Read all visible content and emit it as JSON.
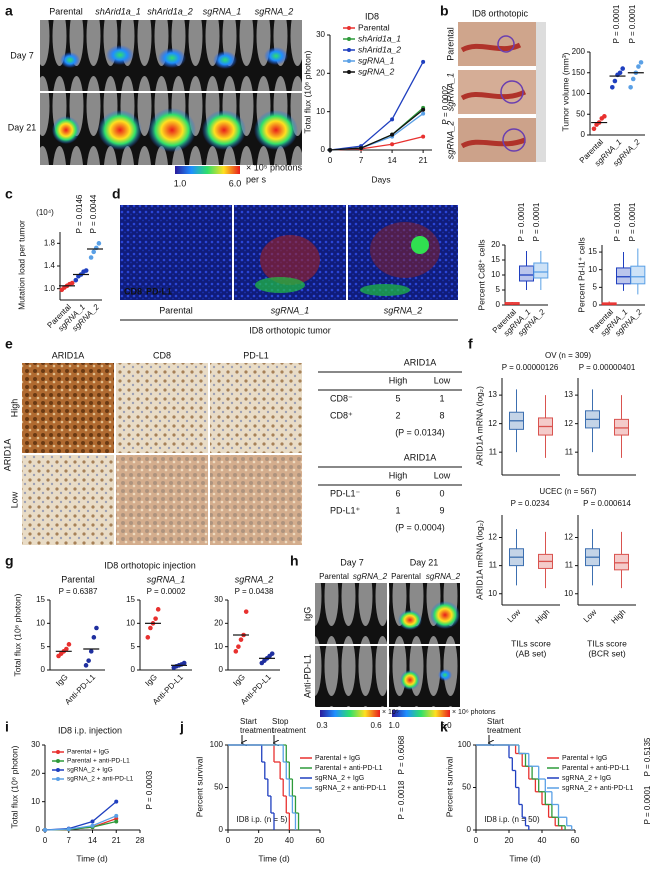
{
  "panel_labels": [
    "a",
    "b",
    "c",
    "d",
    "e",
    "f",
    "g",
    "h",
    "i",
    "j",
    "k"
  ],
  "fig_a": {
    "columns": [
      "Parental",
      "shArid1a_1",
      "shArid1a_2",
      "sgRNA_1",
      "sgRNA_2"
    ],
    "rows": [
      "Day 7",
      "Day 21"
    ],
    "colorbar": [
      "1.0",
      "6.0"
    ],
    "unit": [
      "× 10⁵ photons",
      "per s"
    ]
  },
  "fig_b": {
    "title": "ID8 orthotopic",
    "rows": [
      "Parental",
      "sgRNA_1",
      "sgRNA_2"
    ]
  },
  "fig_d": {
    "stains": [
      "CD8",
      "PD-L1"
    ],
    "columns": [
      "Parental",
      "sgRNA_1",
      "sgRNA_2"
    ],
    "caption": "ID8 orthotopic tumor"
  },
  "fig_e": {
    "columns": [
      "ARID1A",
      "CD8",
      "PD-L1"
    ],
    "rows": [
      "High",
      "Low"
    ],
    "row_title": "ARID1A",
    "tables": [
      {
        "header": "ARID1A",
        "columns": [
          "High",
          "Low"
        ],
        "rows": [
          [
            "CD8⁻",
            5,
            1
          ],
          [
            "CD8⁺",
            2,
            8
          ]
        ],
        "note": "(P = 0.0134)"
      },
      {
        "header": "ARID1A",
        "columns": [
          "High",
          "Low"
        ],
        "rows": [
          [
            "PD-L1⁻",
            6,
            0
          ],
          [
            "PD-L1⁺",
            1,
            9
          ]
        ],
        "note": "(P = 0.0004)"
      }
    ]
  },
  "fig_h": {
    "columns": [
      "Day 7",
      "Day 21"
    ],
    "groups": [
      "Parental",
      "sgRNA_2",
      "Parental",
      "sgRNA_2"
    ],
    "rows": [
      "IgG",
      "Anti-PD-L1"
    ],
    "colorbars": [
      {
        "ticks": [
          "0.3",
          "0.6"
        ],
        "unit": "× 10⁵"
      },
      {
        "ticks": [
          "1.0",
          "6.0"
        ],
        "unit": "× 10⁶ photons"
      }
    ]
  },
  "chart_data": [
    {
      "type": "line",
      "legend_title": "ID8",
      "x": [
        0,
        7,
        14,
        21
      ],
      "xlim": [
        0,
        23
      ],
      "xticks": [
        0,
        7,
        14,
        21
      ],
      "ylim": [
        0,
        30
      ],
      "yticks": [
        0,
        10,
        20,
        30
      ],
      "xlabel": "Days",
      "ylabel": "Total flux (10⁶ photon)",
      "annotations": [
        "P = 0.0002"
      ],
      "series": [
        {
          "name": "Parental",
          "color": "#e8312f",
          "values": [
            0,
            0.3,
            1.5,
            3.5
          ]
        },
        {
          "name": "shArid1a_1",
          "color": "#2e9a3a",
          "values": [
            0,
            0.5,
            4,
            11
          ]
        },
        {
          "name": "shArid1a_2",
          "color": "#1f3fbf",
          "values": [
            0,
            1,
            8,
            23
          ]
        },
        {
          "name": "sgRNA_1",
          "color": "#5aa0e6",
          "values": [
            0,
            0.5,
            3.5,
            9.5
          ]
        },
        {
          "name": "sgRNA_2",
          "color": "#111111",
          "values": [
            0,
            0.5,
            4,
            10.5
          ]
        }
      ]
    },
    {
      "type": "dot",
      "ylabel": "Tumor volume (mm³)",
      "categories": [
        "Parental",
        "sgRNA_1",
        "sgRNA_2"
      ],
      "colors": [
        "#e8312f",
        "#1f3fbf",
        "#5aa0e6"
      ],
      "values": [
        30,
        142,
        150
      ],
      "points": [
        [
          15,
          25,
          30,
          40,
          45
        ],
        [
          115,
          130,
          145,
          150,
          160
        ],
        [
          115,
          135,
          150,
          165,
          175
        ]
      ],
      "ylim": [
        0,
        200
      ],
      "yticks": [
        0,
        50,
        100,
        150,
        200
      ],
      "annotations": [
        "P = 0.0001",
        "P = 0.0001"
      ]
    },
    {
      "type": "dot",
      "ylabel": "Mutation load per tumor",
      "unit": "(10⁴)",
      "categories": [
        "Parental",
        "sgRNA_1",
        "sgRNA_2"
      ],
      "colors": [
        "#e8312f",
        "#1f3fbf",
        "#5aa0e6"
      ],
      "values": [
        1.05,
        1.25,
        1.7
      ],
      "points": [
        [
          0.98,
          1.02,
          1.05,
          1.08,
          1.1
        ],
        [
          1.15,
          1.22,
          1.25,
          1.3,
          1.32
        ],
        [
          1.55,
          1.65,
          1.72,
          1.8
        ]
      ],
      "ylim": [
        0.8,
        2.0
      ],
      "yticks": [
        {
          "value": 1,
          "label": "1.0"
        },
        1.4,
        1.8
      ],
      "annotations": [
        "P = 0.0146",
        "P = 0.0044"
      ]
    },
    {
      "type": "box",
      "ylabel": "Percent Cd8⁺ cells",
      "categories": [
        "Parental",
        "sgRNA_1",
        "sgRNA_2"
      ],
      "colors": [
        "#e8312f",
        "#1f3fbf",
        "#5aa0e6"
      ],
      "boxes": [
        {
          "min": 0,
          "q1": 0.2,
          "median": 0.4,
          "q3": 0.8,
          "max": 1
        },
        {
          "min": 5,
          "q1": 8,
          "median": 10,
          "q3": 13,
          "max": 18
        },
        {
          "min": 5,
          "q1": 9,
          "median": 11,
          "q3": 14,
          "max": 18
        }
      ],
      "ylim": [
        0,
        20
      ],
      "yticks": [
        0,
        5,
        10,
        15,
        20
      ],
      "annotations": [
        "P = 0.0001",
        "P = 0.0001"
      ]
    },
    {
      "type": "box",
      "ylabel": "Percent Pd-l1⁺ cells",
      "categories": [
        "Parental",
        "sgRNA_1",
        "sgRNA_2"
      ],
      "colors": [
        "#e8312f",
        "#1f3fbf",
        "#5aa0e6"
      ],
      "boxes": [
        {
          "min": 0,
          "q1": 0.1,
          "median": 0.3,
          "q3": 0.6,
          "max": 1
        },
        {
          "min": 4,
          "q1": 6,
          "median": 8,
          "q3": 10.5,
          "max": 15
        },
        {
          "min": 3,
          "q1": 6,
          "median": 8,
          "q3": 11,
          "max": 16
        }
      ],
      "ylim": [
        0,
        17
      ],
      "yticks": [
        0,
        5,
        10,
        15
      ],
      "annotations": [
        "P = 0.0001",
        "P = 0.0001"
      ]
    },
    {
      "type": "box",
      "ylabel": "ARID1A mRNA (log₂)",
      "categories": [
        null,
        null
      ],
      "colors": [
        "#3c6fb0",
        "#d9534f"
      ],
      "boxes": [
        {
          "min": 11,
          "q1": 11.8,
          "median": 12.1,
          "q3": 12.4,
          "max": 13.2
        },
        {
          "min": 10.8,
          "q1": 11.6,
          "median": 11.9,
          "q3": 12.2,
          "max": 13
        }
      ],
      "ylim": [
        10.2,
        13.6
      ],
      "yticks": [
        11,
        12,
        13
      ],
      "annotations": [
        "OV (n = 309)",
        "P = 0.00000126"
      ]
    },
    {
      "type": "box",
      "categories": [
        null,
        null
      ],
      "colors": [
        "#3c6fb0",
        "#d9534f"
      ],
      "boxes": [
        {
          "min": 11,
          "q1": 11.85,
          "median": 12.15,
          "q3": 12.45,
          "max": 13.2
        },
        {
          "min": 10.8,
          "q1": 11.6,
          "median": 11.85,
          "q3": 12.15,
          "max": 13
        }
      ],
      "ylim": [
        10.2,
        13.6
      ],
      "yticks": [
        11,
        12,
        13
      ],
      "annotations": [
        "P = 0.00000401"
      ]
    },
    {
      "type": "box",
      "ylabel": "ARID1A mRNA (log₂)",
      "xlabel": [
        "TILs score",
        "(AB set)"
      ],
      "categories": [
        "Low",
        "High"
      ],
      "colors": [
        "#3c6fb0",
        "#d9534f"
      ],
      "boxes": [
        {
          "min": 10.3,
          "q1": 11,
          "median": 11.3,
          "q3": 11.6,
          "max": 12.3
        },
        {
          "min": 10.2,
          "q1": 10.9,
          "median": 11.15,
          "q3": 11.4,
          "max": 12.2
        }
      ],
      "ylim": [
        9.6,
        12.8
      ],
      "yticks": [
        10,
        11,
        12
      ],
      "annotations": [
        "UCEC (n = 567)",
        "P = 0.0234"
      ]
    },
    {
      "type": "box",
      "xlabel": [
        "TILs score",
        "(BCR set)"
      ],
      "categories": [
        "Low",
        "High"
      ],
      "colors": [
        "#3c6fb0",
        "#d9534f"
      ],
      "boxes": [
        {
          "min": 10.3,
          "q1": 11,
          "median": 11.3,
          "q3": 11.6,
          "max": 12.3
        },
        {
          "min": 10.2,
          "q1": 10.85,
          "median": 11.1,
          "q3": 11.4,
          "max": 12.2
        }
      ],
      "ylim": [
        9.6,
        12.8
      ],
      "yticks": [
        10,
        11,
        12
      ],
      "annotations": [
        "P = 0.000614"
      ]
    },
    {
      "type": "dot",
      "title": "ID8 orthotopic injection",
      "subtitle": "Parental",
      "ylabel": "Total flux (10⁶ photon)",
      "categories": [
        "IgG",
        "Anti-PD-L1"
      ],
      "colors": [
        "#e8312f",
        "#1f2f9f"
      ],
      "values": [
        4,
        4.5
      ],
      "points": [
        [
          3,
          3.5,
          4,
          4.5,
          5.5
        ],
        [
          1,
          2,
          4,
          7,
          9
        ]
      ],
      "ylim": [
        0,
        15
      ],
      "yticks": [
        0,
        5,
        10,
        15
      ],
      "annotations": [
        "P = 0.6387"
      ]
    },
    {
      "type": "dot",
      "subtitle": "sgRNA_1",
      "categories": [
        "IgG",
        "Anti-PD-L1"
      ],
      "colors": [
        "#e8312f",
        "#1f2f9f"
      ],
      "values": [
        10,
        1
      ],
      "points": [
        [
          7,
          9,
          10,
          11,
          13
        ],
        [
          0.5,
          0.8,
          1,
          1.2,
          1.5
        ]
      ],
      "ylim": [
        0,
        15
      ],
      "yticks": [
        0,
        5,
        10,
        15
      ],
      "annotations": [
        "P = 0.0002"
      ]
    },
    {
      "type": "dot",
      "subtitle": "sgRNA_2",
      "categories": [
        "IgG",
        "Anti-PD-L1"
      ],
      "colors": [
        "#e8312f",
        "#1f2f9f"
      ],
      "values": [
        15,
        5
      ],
      "points": [
        [
          8,
          10,
          13,
          15,
          25
        ],
        [
          3,
          4,
          5,
          6,
          7
        ]
      ],
      "ylim": [
        0,
        30
      ],
      "yticks": [
        0,
        10,
        20,
        30
      ],
      "annotations": [
        "P = 0.0438"
      ]
    },
    {
      "type": "line",
      "title": "ID8 i.p. injection",
      "x": [
        0,
        7,
        14,
        21
      ],
      "xlim": [
        0,
        28
      ],
      "xticks": [
        0,
        7,
        14,
        21,
        28
      ],
      "ylim": [
        0,
        30
      ],
      "yticks": [
        0,
        10,
        20,
        30
      ],
      "xlabel": "Time (d)",
      "ylabel": "Total flux (10⁶ photon)",
      "annotations": [
        "P = 0.0003"
      ],
      "series": [
        {
          "name": "Parental + IgG",
          "color": "#e8312f",
          "values": [
            0,
            0.2,
            1,
            4
          ]
        },
        {
          "name": "Parental + anti-PD-L1",
          "color": "#2e9a3a",
          "values": [
            0,
            0.2,
            1,
            3
          ]
        },
        {
          "name": "sgRNA_2 + IgG",
          "color": "#1f3fbf",
          "values": [
            0,
            0.5,
            3,
            10
          ]
        },
        {
          "name": "sgRNA_2 + anti-PD-L1",
          "color": "#5aa0e6",
          "values": [
            0,
            0.3,
            1.5,
            5
          ]
        }
      ]
    },
    {
      "type": "step",
      "xlim": [
        0,
        60
      ],
      "xticks": [
        0,
        20,
        40,
        60
      ],
      "ylim": [
        0,
        100
      ],
      "yticks": [
        0,
        50,
        100
      ],
      "xlabel": "Time (d)",
      "ylabel": "Percent survival",
      "annotations": [
        [
          "Start",
          "treatment"
        ],
        [
          "Stop",
          "treatment"
        ],
        "ID8 i.p. (n = 5)",
        "P = 0.6068",
        "P = 0.0018"
      ],
      "series": [
        {
          "name": "Parental + IgG",
          "color": "#e8312f",
          "x": [
            0,
            30,
            34,
            36,
            38,
            40
          ],
          "values": [
            100,
            80,
            60,
            40,
            20,
            0
          ]
        },
        {
          "name": "Parental + anti-PD-L1",
          "color": "#2e9a3a",
          "x": [
            0,
            38,
            40,
            42,
            44,
            46
          ],
          "values": [
            100,
            80,
            60,
            40,
            20,
            0
          ]
        },
        {
          "name": "sgRNA_2 + IgG",
          "color": "#1f3fbf",
          "x": [
            0,
            22,
            24,
            26,
            28,
            30
          ],
          "values": [
            100,
            80,
            60,
            40,
            20,
            0
          ]
        },
        {
          "name": "sgRNA_2 + anti-PD-L1",
          "color": "#5aa0e6",
          "x": [
            0,
            36,
            38,
            40,
            42,
            44
          ],
          "values": [
            100,
            80,
            60,
            40,
            20,
            0
          ]
        }
      ]
    },
    {
      "type": "step",
      "xlim": [
        0,
        60
      ],
      "xticks": [
        0,
        20,
        40,
        60
      ],
      "ylim": [
        0,
        100
      ],
      "yticks": [
        0,
        50,
        100
      ],
      "xlabel": "Time (d)",
      "ylabel": "Percent survival",
      "annotations": [
        [
          "Start",
          "treatment"
        ],
        "ID8 i.p. (n = 50)",
        "P = 0.5135",
        "P = 0.0001"
      ],
      "series": [
        {
          "name": "Parental + IgG",
          "color": "#e8312f",
          "x": [
            0,
            24,
            28,
            32,
            36,
            40,
            44,
            48,
            52
          ],
          "values": [
            100,
            90,
            75,
            60,
            45,
            30,
            15,
            5,
            0
          ]
        },
        {
          "name": "Parental + anti-PD-L1",
          "color": "#2e9a3a",
          "x": [
            0,
            26,
            30,
            34,
            38,
            42,
            46,
            50,
            54
          ],
          "values": [
            100,
            90,
            75,
            60,
            45,
            30,
            15,
            5,
            0
          ]
        },
        {
          "name": "sgRNA_2 + IgG",
          "color": "#1f3fbf",
          "x": [
            0,
            20,
            22,
            24,
            26,
            28,
            30,
            32
          ],
          "values": [
            100,
            85,
            70,
            50,
            30,
            15,
            5,
            0
          ]
        },
        {
          "name": "sgRNA_2 + anti-PD-L1",
          "color": "#5aa0e6",
          "x": [
            0,
            26,
            32,
            38,
            42,
            46,
            50,
            55,
            58
          ],
          "values": [
            100,
            90,
            75,
            60,
            45,
            30,
            15,
            5,
            0
          ]
        }
      ]
    }
  ]
}
